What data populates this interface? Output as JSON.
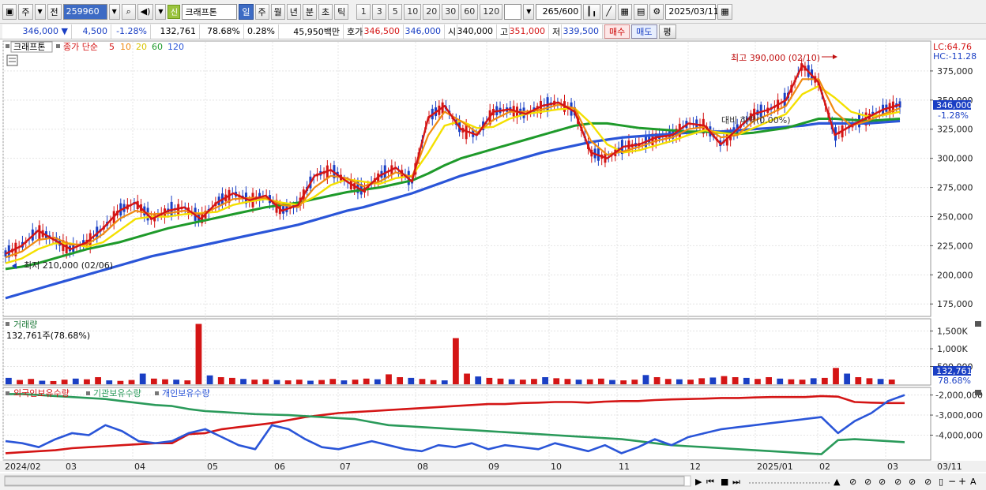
{
  "toolbar": {
    "type_label": "주",
    "type2_label": "전",
    "stock_code": "259960",
    "shin_label": "신",
    "stock_name": "크래프톤",
    "periods": [
      "일",
      "주",
      "월",
      "년",
      "분",
      "초",
      "틱"
    ],
    "active_period": "일",
    "intervals": [
      "1",
      "3",
      "5",
      "10",
      "20",
      "30",
      "60",
      "120"
    ],
    "count_value": "265",
    "count_total": "/600",
    "date_value": "2025/03/11"
  },
  "quote": {
    "price": "346,000",
    "change": "4,500",
    "change_pct": "-1.28%",
    "volume": "132,761",
    "vol_ratio": "78.68%",
    "turnover_pct": "0.28%",
    "amount": "45,950백만",
    "hoga_label": "호가",
    "ask": "346,500",
    "bid": "346,000",
    "open_label": "시",
    "open": "340,000",
    "high_label": "고",
    "high": "351,000",
    "low_label": "저",
    "low": "339,500",
    "buy_label": "매수",
    "sell_label": "매도",
    "avg_label": "평"
  },
  "price_panel": {
    "stock_tag": "크래프톤",
    "ma_title": "종가 단순",
    "ma_periods": [
      "5",
      "10",
      "20",
      "60",
      "120"
    ],
    "lc_label": "LC:64.76",
    "hc_label": "HC:-11.28",
    "current_price_tag": "346,000",
    "current_pct_tag": "-1.28%",
    "high_annotation": "최고 390,000 (02/10)",
    "low_annotation": "최저 210,000 (02/06)",
    "mid_annotation": "대비 하락(0.00%)"
  },
  "volume_panel": {
    "title": "거래량",
    "subtitle": "132,761주(78.68%)",
    "current_tag": "132,761",
    "current_pct_tag": "78.68%"
  },
  "holdings_panel": {
    "legend": [
      "외국인보유수량",
      "기관보유수량",
      "개인보유수량"
    ]
  },
  "colors": {
    "ma5": "#d41515",
    "ma10": "#f08a10",
    "ma20": "#f4e000",
    "ma60": "#1e9a2a",
    "ma120": "#2a55d8",
    "up": "#d41515",
    "down": "#1a3fc4",
    "foreign": "#d41515",
    "institution": "#2a9a5a",
    "individual": "#2a55d8"
  },
  "chart_data": [
    {
      "type": "line",
      "title": "",
      "x_ticks": [
        "2024/02",
        "03",
        "04",
        "05",
        "06",
        "07",
        "08",
        "09",
        "10",
        "11",
        "12",
        "2025/01",
        "02",
        "03",
        "03/11"
      ],
      "y_ticks": [
        "375,000",
        "350,000",
        "325,000",
        "300,000",
        "275,000",
        "250,000",
        "225,000",
        "200,000",
        "175,000"
      ],
      "ylim": [
        165000,
        400000
      ],
      "series": [
        {
          "name": "5",
          "values": [
            218000,
            225000,
            238000,
            230000,
            222000,
            228000,
            240000,
            255000,
            262000,
            248000,
            255000,
            258000,
            248000,
            262000,
            270000,
            264000,
            268000,
            255000,
            260000,
            285000,
            290000,
            280000,
            272000,
            285000,
            292000,
            280000,
            335000,
            345000,
            325000,
            320000,
            340000,
            342000,
            338000,
            345000,
            348000,
            340000,
            305000,
            300000,
            310000,
            312000,
            318000,
            320000,
            330000,
            328000,
            312000,
            325000,
            338000,
            342000,
            350000,
            380000,
            365000,
            320000,
            328000,
            335000,
            342000,
            346000
          ]
        },
        {
          "name": "10",
          "values": [
            215000,
            220000,
            230000,
            232000,
            226000,
            226000,
            235000,
            248000,
            255000,
            252000,
            253000,
            255000,
            252000,
            258000,
            265000,
            266000,
            266000,
            260000,
            258000,
            275000,
            285000,
            283000,
            276000,
            280000,
            288000,
            284000,
            320000,
            340000,
            332000,
            322000,
            333000,
            340000,
            340000,
            342000,
            346000,
            343000,
            315000,
            303000,
            306000,
            310000,
            315000,
            318000,
            325000,
            327000,
            318000,
            320000,
            332000,
            338000,
            345000,
            368000,
            368000,
            340000,
            328000,
            332000,
            338000,
            343000
          ]
        },
        {
          "name": "20",
          "values": [
            210000,
            214000,
            222000,
            227000,
            227000,
            224000,
            228000,
            238000,
            248000,
            250000,
            250000,
            252000,
            253000,
            254000,
            260000,
            263000,
            265000,
            262000,
            260000,
            267000,
            277000,
            282000,
            280000,
            278000,
            283000,
            285000,
            305000,
            328000,
            332000,
            326000,
            327000,
            334000,
            338000,
            340000,
            342000,
            343000,
            330000,
            312000,
            305000,
            307000,
            311000,
            315000,
            320000,
            324000,
            322000,
            320000,
            326000,
            332000,
            338000,
            355000,
            362000,
            352000,
            340000,
            336000,
            337000,
            340000
          ]
        },
        {
          "name": "60",
          "values": [
            205000,
            207000,
            210000,
            214000,
            218000,
            222000,
            225000,
            228000,
            232000,
            236000,
            240000,
            243000,
            246000,
            249000,
            252000,
            255000,
            258000,
            260000,
            262000,
            265000,
            268000,
            271000,
            273000,
            275000,
            278000,
            281000,
            287000,
            294000,
            300000,
            304000,
            308000,
            312000,
            316000,
            320000,
            324000,
            328000,
            330000,
            330000,
            328000,
            326000,
            325000,
            324000,
            323000,
            323000,
            322000,
            321000,
            322000,
            324000,
            326000,
            330000,
            334000,
            334000,
            333000,
            332000,
            333000,
            334000
          ]
        },
        {
          "name": "120",
          "values": [
            180000,
            184000,
            188000,
            192000,
            196000,
            200000,
            204000,
            208000,
            212000,
            216000,
            219000,
            222000,
            225000,
            228000,
            231000,
            234000,
            237000,
            240000,
            243000,
            247000,
            251000,
            255000,
            258000,
            262000,
            266000,
            270000,
            275000,
            280000,
            285000,
            289000,
            293000,
            297000,
            301000,
            305000,
            308000,
            311000,
            314000,
            316000,
            318000,
            319000,
            320000,
            321000,
            322000,
            323000,
            323000,
            324000,
            325000,
            326000,
            327000,
            328000,
            330000,
            330000,
            330000,
            330000,
            331000,
            332000
          ]
        }
      ]
    },
    {
      "type": "bar",
      "title": "거래량",
      "y_ticks": [
        "1,500K",
        "1,000K",
        "500,000"
      ],
      "ylim": [
        0,
        1800000
      ],
      "values": [
        180000,
        120000,
        150000,
        100000,
        90000,
        130000,
        160000,
        140000,
        200000,
        110000,
        95000,
        120000,
        300000,
        160000,
        140000,
        130000,
        110000,
        1700000,
        250000,
        200000,
        180000,
        150000,
        130000,
        140000,
        120000,
        110000,
        130000,
        100000,
        120000,
        150000,
        110000,
        130000,
        160000,
        140000,
        280000,
        200000,
        180000,
        150000,
        120000,
        110000,
        1300000,
        300000,
        220000,
        180000,
        160000,
        140000,
        130000,
        150000,
        200000,
        170000,
        150000,
        130000,
        140000,
        160000,
        120000,
        110000,
        130000,
        260000,
        200000,
        150000,
        140000,
        130000,
        170000,
        190000,
        230000,
        200000,
        180000,
        150000,
        200000,
        160000,
        140000,
        130000,
        170000,
        180000,
        460000,
        300000,
        200000,
        170000,
        150000,
        133000
      ]
    },
    {
      "type": "line",
      "title": "",
      "legend": [
        "외국인보유수량",
        "기관보유수량",
        "개인보유수량"
      ],
      "y_ticks": [
        "-2,000,000",
        "-3,000,000",
        "-4,000,000"
      ],
      "ylim": [
        -5200000,
        -1700000
      ],
      "series": [
        {
          "name": "외국인보유수량",
          "values": [
            -4900000,
            -4850000,
            -4800000,
            -4750000,
            -4650000,
            -4600000,
            -4550000,
            -4500000,
            -4450000,
            -4400000,
            -4400000,
            -3950000,
            -3900000,
            -3700000,
            -3600000,
            -3500000,
            -3400000,
            -3250000,
            -3100000,
            -3000000,
            -2900000,
            -2850000,
            -2800000,
            -2750000,
            -2700000,
            -2650000,
            -2600000,
            -2550000,
            -2500000,
            -2450000,
            -2450000,
            -2400000,
            -2380000,
            -2350000,
            -2350000,
            -2380000,
            -2330000,
            -2300000,
            -2300000,
            -2250000,
            -2220000,
            -2200000,
            -2180000,
            -2150000,
            -2150000,
            -2120000,
            -2100000,
            -2100000,
            -2100000,
            -2050000,
            -2080000,
            -2350000,
            -2380000,
            -2400000,
            -2400000
          ]
        },
        {
          "name": "기관보유수량",
          "values": [
            -1950000,
            -1950000,
            -2000000,
            -2050000,
            -2100000,
            -2150000,
            -2200000,
            -2300000,
            -2400000,
            -2500000,
            -2550000,
            -2700000,
            -2800000,
            -2850000,
            -2900000,
            -2950000,
            -2980000,
            -3000000,
            -3050000,
            -3100000,
            -3150000,
            -3200000,
            -3350000,
            -3500000,
            -3550000,
            -3600000,
            -3650000,
            -3700000,
            -3750000,
            -3800000,
            -3850000,
            -3900000,
            -3950000,
            -4000000,
            -4050000,
            -4100000,
            -4150000,
            -4200000,
            -4300000,
            -4400000,
            -4500000,
            -4550000,
            -4600000,
            -4650000,
            -4700000,
            -4750000,
            -4800000,
            -4850000,
            -4900000,
            -4950000,
            -4250000,
            -4200000,
            -4250000,
            -4300000,
            -4350000
          ]
        },
        {
          "name": "개인보유수량",
          "values": [
            -4300000,
            -4400000,
            -4600000,
            -4200000,
            -3900000,
            -4000000,
            -3500000,
            -3800000,
            -4300000,
            -4400000,
            -4300000,
            -3900000,
            -3700000,
            -4100000,
            -4500000,
            -4700000,
            -3500000,
            -3700000,
            -4200000,
            -4600000,
            -4700000,
            -4500000,
            -4300000,
            -4500000,
            -4700000,
            -4800000,
            -4500000,
            -4600000,
            -4400000,
            -4700000,
            -4500000,
            -4600000,
            -4700000,
            -4400000,
            -4600000,
            -4800000,
            -4500000,
            -4900000,
            -4600000,
            -4200000,
            -4500000,
            -4100000,
            -3900000,
            -3700000,
            -3600000,
            -3500000,
            -3400000,
            -3300000,
            -3200000,
            -3100000,
            -3900000,
            -3300000,
            -2900000,
            -2300000,
            -2000000
          ]
        }
      ]
    }
  ]
}
